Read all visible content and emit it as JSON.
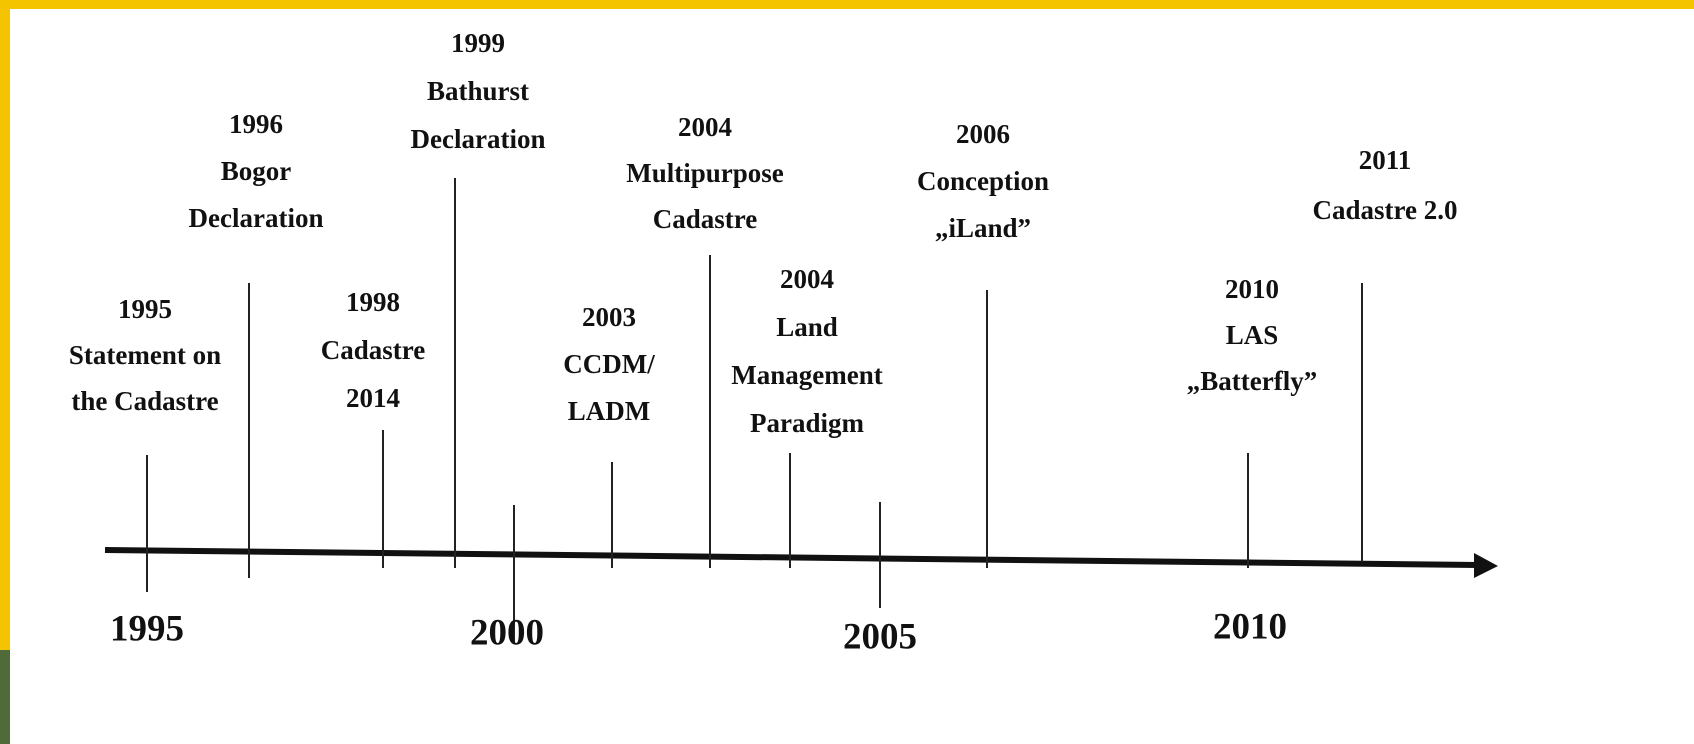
{
  "events": [
    {
      "year": "1995",
      "lines": [
        "Statement on",
        "the Cadastre"
      ]
    },
    {
      "year": "1996",
      "lines": [
        "Bogor",
        "Declaration"
      ]
    },
    {
      "year": "1998",
      "lines": [
        "Cadastre",
        "2014"
      ]
    },
    {
      "year": "1999",
      "lines": [
        "Bathurst",
        "Declaration"
      ]
    },
    {
      "year": "2003",
      "lines": [
        "CCDM/",
        "LADM"
      ]
    },
    {
      "year": "2004",
      "lines": [
        "Multipurpose",
        "Cadastre"
      ]
    },
    {
      "year": "2004",
      "lines": [
        "Land",
        "Management",
        "Paradigm"
      ]
    },
    {
      "year": "2006",
      "lines": [
        "Conception",
        "„iLand”"
      ]
    },
    {
      "year": "2010",
      "lines": [
        "LAS",
        "„Batterfly”"
      ]
    },
    {
      "year": "2011",
      "lines": [
        "Cadastre 2.0"
      ]
    }
  ],
  "axis_labels": [
    "1995",
    "2000",
    "2005",
    "2010"
  ]
}
